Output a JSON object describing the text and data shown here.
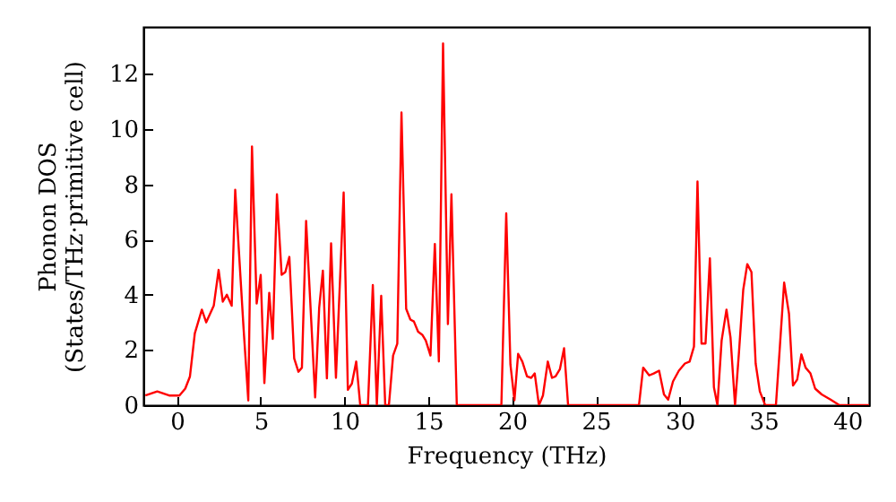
{
  "chart_data": {
    "type": "line",
    "xlabel": "Frequency (THz)",
    "ylabel": "Phonon DOS\n(States/THz·primitive cell)",
    "xlim": [
      -2,
      41.3
    ],
    "ylim": [
      0,
      13.7
    ],
    "xticks": [
      0,
      5,
      10,
      15,
      20,
      25,
      30,
      35,
      40
    ],
    "yticks": [
      0,
      2,
      4,
      6,
      8,
      10,
      12
    ],
    "marker": "none",
    "line_style": "solid",
    "series": [
      {
        "color": "#ff0000",
        "x": [
          -1.88,
          -1.17,
          -0.46,
          0.15,
          0.5,
          0.78,
          1.07,
          1.49,
          1.75,
          2.2,
          2.49,
          2.74,
          2.98,
          3.27,
          3.48,
          3.98,
          4.26,
          4.48,
          4.76,
          5.0,
          5.22,
          5.51,
          5.72,
          5.97,
          6.25,
          6.47,
          6.71,
          7.0,
          7.25,
          7.46,
          7.71,
          8.25,
          8.49,
          8.71,
          8.95,
          9.2,
          9.49,
          9.95,
          10.2,
          10.44,
          10.7,
          10.94,
          11.4,
          11.69,
          11.93,
          12.19,
          12.43,
          12.65,
          12.9,
          13.15,
          13.4,
          13.68,
          13.93,
          14.14,
          14.39,
          14.64,
          14.85,
          15.13,
          15.39,
          15.63,
          15.88,
          16.17,
          16.38,
          16.7,
          19.36,
          19.65,
          19.9,
          20.14,
          20.36,
          20.61,
          20.89,
          21.14,
          21.35,
          21.6,
          21.84,
          22.13,
          22.38,
          22.59,
          22.85,
          23.1,
          23.34,
          27.57,
          27.82,
          28.18,
          28.45,
          28.77,
          29.06,
          29.31,
          29.6,
          29.95,
          30.31,
          30.59,
          30.85,
          31.06,
          31.3,
          31.54,
          31.8,
          32.04,
          32.25,
          32.5,
          32.79,
          33.03,
          33.3,
          33.54,
          33.79,
          34.03,
          34.28,
          34.53,
          34.78,
          35.1,
          35.74,
          35.98,
          36.23,
          36.52,
          36.76,
          37.01,
          37.26,
          37.51,
          37.8,
          38.08,
          38.47,
          39.0,
          39.53,
          41.3
        ],
        "values": [
          0.35,
          0.5,
          0.35,
          0.35,
          0.6,
          1.04,
          2.6,
          3.46,
          3.0,
          3.6,
          4.9,
          3.75,
          4.0,
          3.6,
          7.8,
          2.77,
          0.17,
          9.37,
          3.68,
          4.72,
          0.8,
          4.07,
          2.4,
          7.64,
          4.72,
          4.82,
          5.37,
          1.69,
          1.21,
          1.36,
          6.67,
          0.28,
          3.53,
          4.87,
          0.97,
          5.86,
          0.99,
          7.7,
          0.56,
          0.78,
          1.58,
          0,
          0,
          4.35,
          0,
          3.96,
          0,
          0,
          1.8,
          2.23,
          10.6,
          3.49,
          3.1,
          3.03,
          2.66,
          2.55,
          2.34,
          1.8,
          5.84,
          1.58,
          13.1,
          2.94,
          7.64,
          0,
          0,
          6.95,
          1.47,
          0.18,
          1.86,
          1.58,
          1.04,
          0.99,
          1.15,
          0,
          0.35,
          1.58,
          0.99,
          1.04,
          1.3,
          2.06,
          0,
          0,
          1.36,
          1.08,
          1.15,
          1.25,
          0.39,
          0.2,
          0.86,
          1.25,
          1.51,
          1.58,
          2.12,
          8.1,
          2.23,
          2.23,
          5.32,
          0.65,
          0,
          2.34,
          3.46,
          2.45,
          0,
          1.95,
          4.18,
          5.11,
          4.82,
          1.51,
          0.5,
          0,
          0,
          2.16,
          4.44,
          3.31,
          0.71,
          0.93,
          1.84,
          1.36,
          1.15,
          0.6,
          0.39,
          0.2,
          0,
          0
        ]
      }
    ]
  }
}
